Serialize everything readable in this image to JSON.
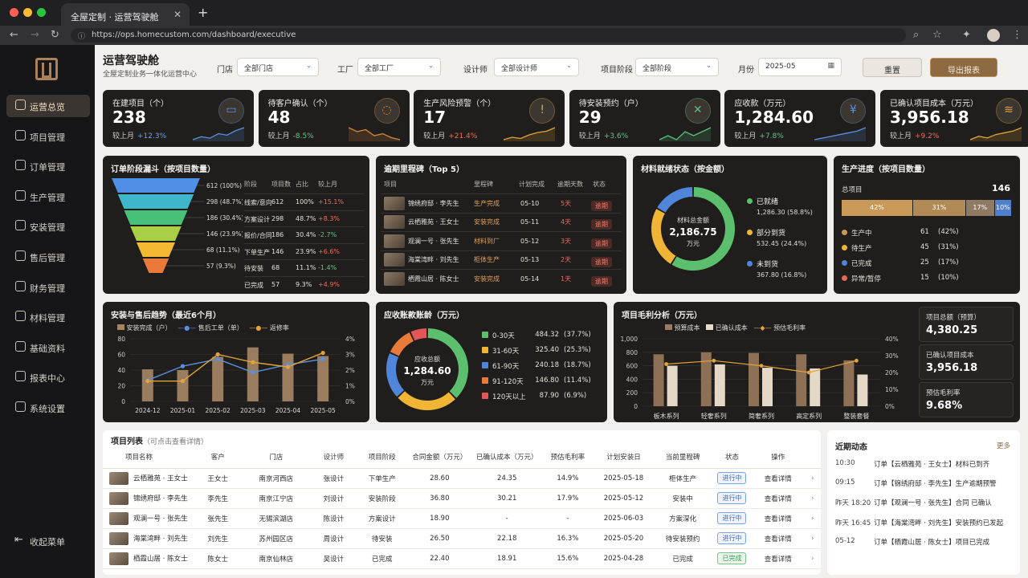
{
  "browser": {
    "tab_title": "全屋定制 · 运营驾驶舱",
    "url": "https://ops.homecustom.com/dashboard/executive"
  },
  "sidebar": {
    "items": [
      {
        "label": "运营总览",
        "icon": "dashboard-icon"
      },
      {
        "label": "项目管理",
        "icon": "document-icon"
      },
      {
        "label": "订单管理",
        "icon": "clipboard-icon"
      },
      {
        "label": "生产管理",
        "icon": "factory-icon"
      },
      {
        "label": "安装管理",
        "icon": "wrench-icon"
      },
      {
        "label": "售后管理",
        "icon": "shield-icon"
      },
      {
        "label": "财务管理",
        "icon": "wallet-icon"
      },
      {
        "label": "材料管理",
        "icon": "box-icon"
      },
      {
        "label": "基础资料",
        "icon": "database-icon"
      },
      {
        "label": "报表中心",
        "icon": "chart-icon"
      },
      {
        "label": "系统设置",
        "icon": "gear-icon"
      }
    ],
    "collapse": "收起菜单"
  },
  "header": {
    "title": "运营驾驶舱",
    "subtitle": "全屋定制业务一体化运营中心"
  },
  "filters": [
    {
      "label": "门店",
      "value": "全部门店"
    },
    {
      "label": "工厂",
      "value": "全部工厂"
    },
    {
      "label": "设计师",
      "value": "全部设计师"
    },
    {
      "label": "项目阶段",
      "value": "全部阶段"
    },
    {
      "label": "月份",
      "value": "2025-05"
    }
  ],
  "actions": {
    "reset": "重置",
    "export": "导出报表"
  },
  "kpis": [
    {
      "title": "在建项目（个）",
      "value": "238",
      "cmp": "较上月",
      "delta": "+12.3%",
      "trend": "up",
      "color": "#5b8fe0",
      "icon": "folder-icon",
      "glyph": "▭",
      "spark": [
        3,
        4,
        3.5,
        5,
        4.5,
        6,
        7
      ]
    },
    {
      "title": "待客户确认（个）",
      "value": "48",
      "cmp": "较上月",
      "delta": "-8.5%",
      "trend": "down",
      "color": "#d9853e",
      "icon": "chat-icon",
      "glyph": "◌",
      "spark": [
        6,
        5,
        5.5,
        4,
        4.5,
        3.5,
        3
      ]
    },
    {
      "title": "生产风险预警（个）",
      "value": "17",
      "cmp": "较上月",
      "delta": "+21.4%",
      "trend": "up",
      "color": "#e2a338",
      "icon": "warning-shield-icon",
      "glyph": "!",
      "spark": [
        2,
        3,
        2.5,
        4,
        5,
        5.5,
        7
      ]
    },
    {
      "title": "待安装预约（户）",
      "value": "29",
      "cmp": "较上月",
      "delta": "+3.6%",
      "trend": "down",
      "color": "#5bbf7e",
      "icon": "tools-icon",
      "glyph": "✕",
      "spark": [
        3,
        4,
        3,
        5,
        4,
        5,
        6
      ]
    },
    {
      "title": "应收款（万元）",
      "value": "1,284.60",
      "cmp": "较上月",
      "delta": "+7.8%",
      "trend": "down",
      "color": "#5b8fe0",
      "icon": "yen-icon",
      "glyph": "¥",
      "spark": [
        3,
        3.5,
        4,
        4.5,
        5,
        5.5,
        6.5
      ]
    },
    {
      "title": "已确认项目成本（万元）",
      "value": "3,956.18",
      "cmp": "较上月",
      "delta": "+9.2%",
      "trend": "up",
      "color": "#e2a338",
      "icon": "coins-icon",
      "glyph": "≋",
      "spark": [
        3,
        4,
        3.5,
        4.5,
        5,
        5.5,
        6.5
      ]
    }
  ],
  "funnel": {
    "title": "订单阶段漏斗（按项目数量）",
    "labels": [
      "612 (100%)",
      "298 (48.7%)",
      "186 (30.4%)",
      "146 (23.9%)",
      "68 (11.1%)",
      "57 (9.3%)"
    ],
    "colors": [
      "#4f8fe6",
      "#3fb6c9",
      "#49c07a",
      "#a8cf45",
      "#f5b833",
      "#ea7a3a"
    ],
    "headers": [
      "阶段",
      "项目数",
      "占比",
      "较上月"
    ],
    "rows": [
      [
        "线索/意向",
        "612",
        "100%",
        "+15.1%",
        "up"
      ],
      [
        "方案设计",
        "298",
        "48.7%",
        "+8.3%",
        "up"
      ],
      [
        "报价/合同",
        "186",
        "30.4%",
        "-2.7%",
        "down"
      ],
      [
        "下单生产",
        "146",
        "23.9%",
        "+6.6%",
        "up"
      ],
      [
        "待安装",
        "68",
        "11.1%",
        "-1.4%",
        "down"
      ],
      [
        "已完成",
        "57",
        "9.3%",
        "+4.9%",
        "up"
      ]
    ]
  },
  "milestones": {
    "title": "逾期里程碑（Top 5）",
    "headers": [
      "项目",
      "里程碑",
      "计划完成",
      "逾期天数",
      "状态"
    ],
    "rows": [
      [
        "锦绣府邸 · 李先生",
        "生产完成",
        "05-10",
        "5天",
        "逾期"
      ],
      [
        "云栖雅苑 · 王女士",
        "安装完成",
        "05-11",
        "4天",
        "逾期"
      ],
      [
        "观澜一号 · 张先生",
        "材料到厂",
        "05-12",
        "3天",
        "逾期"
      ],
      [
        "海棠湾畔 · 刘先生",
        "柜体生产",
        "05-13",
        "2天",
        "逾期"
      ],
      [
        "栖霞山居 · 陈女士",
        "安装完成",
        "05-14",
        "1天",
        "逾期"
      ]
    ]
  },
  "materials": {
    "title": "材料就绪状态（按金额）",
    "center_label": "材料总金额",
    "center_value": "2,186.75",
    "center_unit": "万元",
    "items": [
      {
        "name": "已就绪",
        "value": "1,286.30",
        "pct": "(58.8%)",
        "share": 58.8,
        "color": "#5bbf6e"
      },
      {
        "name": "部分到货",
        "value": "532.45",
        "pct": "(24.4%)",
        "share": 24.4,
        "color": "#f0b534"
      },
      {
        "name": "未到货",
        "value": "367.80",
        "pct": "(16.8%)",
        "share": 16.8,
        "color": "#4f86d9"
      }
    ]
  },
  "production": {
    "title": "生产进度（按项目数量）",
    "total_label": "总项目",
    "total": "146",
    "bar": [
      {
        "label": "42%",
        "share": 42,
        "color": "#c99a57"
      },
      {
        "label": "31%",
        "share": 31,
        "color": "#b18a56"
      },
      {
        "label": "17%",
        "share": 17,
        "color": "#8f7a63"
      },
      {
        "label": "10%",
        "share": 10,
        "color": "#4f7fcf"
      }
    ],
    "legend": [
      {
        "name": "生产中",
        "value": "61",
        "pct": "(42%)",
        "color": "#c99a57"
      },
      {
        "name": "待生产",
        "value": "45",
        "pct": "(31%)",
        "color": "#f0b534"
      },
      {
        "name": "已完成",
        "value": "25",
        "pct": "(17%)",
        "color": "#4f86d9"
      },
      {
        "name": "异常/暂停",
        "value": "15",
        "pct": "(10%)",
        "color": "#e56a5a"
      }
    ]
  },
  "trend": {
    "title": "安装与售后趋势（最近6个月）",
    "legend": [
      "安装完成（户）",
      "售后工单（单）",
      "返修率"
    ],
    "y_ticks": [
      "80",
      "60",
      "40",
      "20",
      "0"
    ],
    "y2_ticks": [
      "4%",
      "3%",
      "2%",
      "1%",
      "0%"
    ],
    "chart_data": {
      "type": "bar+line",
      "categories": [
        "2024-12",
        "2025-01",
        "2025-02",
        "2025-03",
        "2025-04",
        "2025-05"
      ],
      "installs": [
        41,
        40,
        57,
        69,
        61,
        58
      ],
      "tickets": [
        27,
        45,
        54,
        37,
        47,
        54
      ],
      "rework_rate": [
        1.3,
        1.3,
        3.0,
        2.5,
        2.2,
        3.1
      ],
      "ylim": [
        0,
        80
      ],
      "y2lim": [
        0,
        4
      ]
    }
  },
  "aging": {
    "title": "应收账款账龄（万元）",
    "center_label": "应收总额",
    "center_value": "1,284.60",
    "center_unit": "万元",
    "items": [
      {
        "name": "0-30天",
        "value": "484.32",
        "pct": "(37.7%)",
        "share": 37.7,
        "color": "#5bbf6e"
      },
      {
        "name": "31-60天",
        "value": "325.40",
        "pct": "(25.3%)",
        "share": 25.3,
        "color": "#f0b534"
      },
      {
        "name": "61-90天",
        "value": "240.18",
        "pct": "(18.7%)",
        "share": 18.7,
        "color": "#4f86d9"
      },
      {
        "name": "91-120天",
        "value": "146.80",
        "pct": "(11.4%)",
        "share": 11.4,
        "color": "#ea7a3a"
      },
      {
        "name": "120天以上",
        "value": "87.90",
        "pct": "(6.9%)",
        "share": 6.9,
        "color": "#e25656"
      }
    ]
  },
  "margin": {
    "title": "项目毛利分析（万元）",
    "legend": [
      "预算成本",
      "已确认成本",
      "预估毛利率"
    ],
    "y_ticks": [
      "1,000",
      "800",
      "600",
      "400",
      "200",
      "0"
    ],
    "y2_ticks": [
      "40%",
      "30%",
      "20%",
      "10%",
      "0%"
    ],
    "chart_data": {
      "type": "bar+line",
      "categories": [
        "板木系列",
        "轻奢系列",
        "简奢系列",
        "高定系列",
        "整装套餐"
      ],
      "budget": [
        770,
        800,
        790,
        770,
        680
      ],
      "confirmed": [
        600,
        620,
        570,
        560,
        470
      ],
      "margin_rate": [
        25,
        27,
        24,
        20,
        27
      ],
      "ylim": [
        0,
        1000
      ],
      "y2lim": [
        0,
        40
      ]
    },
    "summary": [
      {
        "label": "项目总额（预算）",
        "value": "4,380.25"
      },
      {
        "label": "已确认项目成本",
        "value": "3,956.18"
      },
      {
        "label": "预估毛利率",
        "value": "9.68%"
      }
    ]
  },
  "project_list": {
    "title": "项目列表",
    "hint": "（可点击查看详情）",
    "headers": [
      "项目名称",
      "客户",
      "门店",
      "设计师",
      "项目阶段",
      "合同金额（万元）",
      "已确认成本（万元）",
      "预估毛利率",
      "计划安装日",
      "当前里程碑",
      "状态",
      "操作"
    ],
    "rows": [
      [
        "云栖雅苑 · 王女士",
        "王女士",
        "南京河西店",
        "张设计",
        "下单生产",
        "28.60",
        "24.35",
        "14.9%",
        "2025-05-18",
        "柜体生产",
        "进行中",
        "查看详情"
      ],
      [
        "锦绣府邸 · 李先生",
        "李先生",
        "南京江宁店",
        "刘设计",
        "安装阶段",
        "36.80",
        "30.21",
        "17.9%",
        "2025-05-12",
        "安装中",
        "进行中",
        "查看详情"
      ],
      [
        "观澜一号 · 张先生",
        "张先生",
        "无锡滨湖店",
        "陈设计",
        "方案设计",
        "18.90",
        "-",
        "-",
        "2025-06-03",
        "方案深化",
        "进行中",
        "查看详情"
      ],
      [
        "海棠湾畔 · 刘先生",
        "刘先生",
        "苏州园区店",
        "周设计",
        "待安装",
        "26.50",
        "22.18",
        "16.3%",
        "2025-05-20",
        "待安装预约",
        "进行中",
        "查看详情"
      ],
      [
        "栖霞山居 · 陈女士",
        "陈女士",
        "南京仙林店",
        "吴设计",
        "已完成",
        "22.40",
        "18.91",
        "15.6%",
        "2025-04-28",
        "已完成",
        "已完成",
        "查看详情"
      ]
    ]
  },
  "activity": {
    "title": "近期动态",
    "more": "更多",
    "items": [
      {
        "time": "10:30",
        "text": "订单【云栖雅苑 · 王女士】材料已到齐"
      },
      {
        "time": "09:15",
        "text": "订单【锦绣府邸 · 李先生】生产逾期预警"
      },
      {
        "time": "昨天 18:20",
        "text": "订单【观澜一号 · 张先生】合同 已确认"
      },
      {
        "time": "昨天 16:45",
        "text": "订单【海棠湾畔 · 刘先生】安装预约已发起"
      },
      {
        "time": "05-12",
        "text": "订单【栖霞山居 · 陈女士】项目已完成"
      }
    ]
  }
}
